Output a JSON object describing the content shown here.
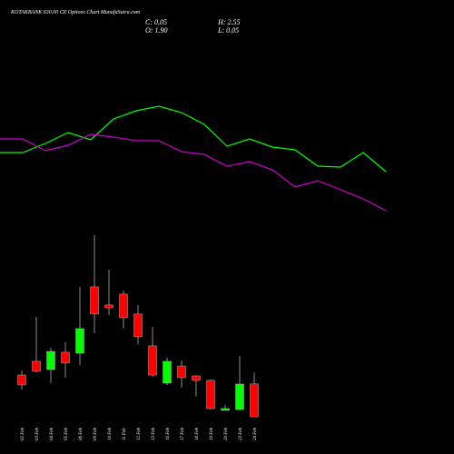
{
  "chart_data": [
    {
      "type": "candlestick",
      "title": "KOTAKBANK 630.00 CE Options Chart MunafaSutra.com",
      "annotations": [
        "C: 0.05",
        "O: 1.90",
        "H: 2.55",
        "L: 0.05"
      ],
      "categories": [
        "02 Feb",
        "03 Feb",
        "04 Feb",
        "05 Feb",
        "06 Feb",
        "09 Feb",
        "10 Feb",
        "11 Feb",
        "12 Feb",
        "13 Feb",
        "16 Feb",
        "17 Feb",
        "18 Feb",
        "19 Feb",
        "20 Feb",
        "23 Feb",
        "24 Feb"
      ],
      "open": [
        2.4,
        3.17,
        2.71,
        3.68,
        3.63,
        7.36,
        6.34,
        6.95,
        5.83,
        4.04,
        1.94,
        2.91,
        2.35,
        2.1,
        0.41,
        0.46,
        1.9
      ],
      "high": [
        2.66,
        5.67,
        3.93,
        4.24,
        7.36,
        10.27,
        8.33,
        7.15,
        6.34,
        5.11,
        3.37,
        3.22,
        2.4,
        2.15,
        0.72,
        3.47,
        2.55
      ],
      "low": [
        1.58,
        2.55,
        1.94,
        2.25,
        2.96,
        4.75,
        5.77,
        5.01,
        4.14,
        2.3,
        1.84,
        1.69,
        1.18,
        0.46,
        0.41,
        0.41,
        0.05
      ],
      "close": [
        1.84,
        2.61,
        3.73,
        3.07,
        5.01,
        5.83,
        6.18,
        5.62,
        4.55,
        2.4,
        3.17,
        2.25,
        2.1,
        0.51,
        0.51,
        1.89,
        0.05
      ],
      "up_color": "#00ff00",
      "down_color": "#ff0000",
      "ylim": [
        0,
        23.5
      ]
    },
    {
      "type": "line",
      "series": [
        {
          "color": "#00ff00",
          "values": [
            66.4,
            66.4,
            68.4,
            70.8,
            69.2,
            73.8,
            75.6,
            76.6,
            75.2,
            72.6,
            67.8,
            69.4,
            67.6,
            67.0,
            63.4,
            63.2,
            66.4,
            62.2
          ]
        },
        {
          "color": "#cc00cc",
          "values": [
            69.4,
            69.4,
            66.8,
            68.0,
            70.4,
            69.8,
            69.0,
            69.0,
            66.6,
            66.0,
            63.4,
            64.4,
            62.6,
            58.8,
            60.2,
            58.2,
            56.2,
            53.6
          ]
        }
      ],
      "ylim": [
        0,
        100
      ]
    }
  ]
}
